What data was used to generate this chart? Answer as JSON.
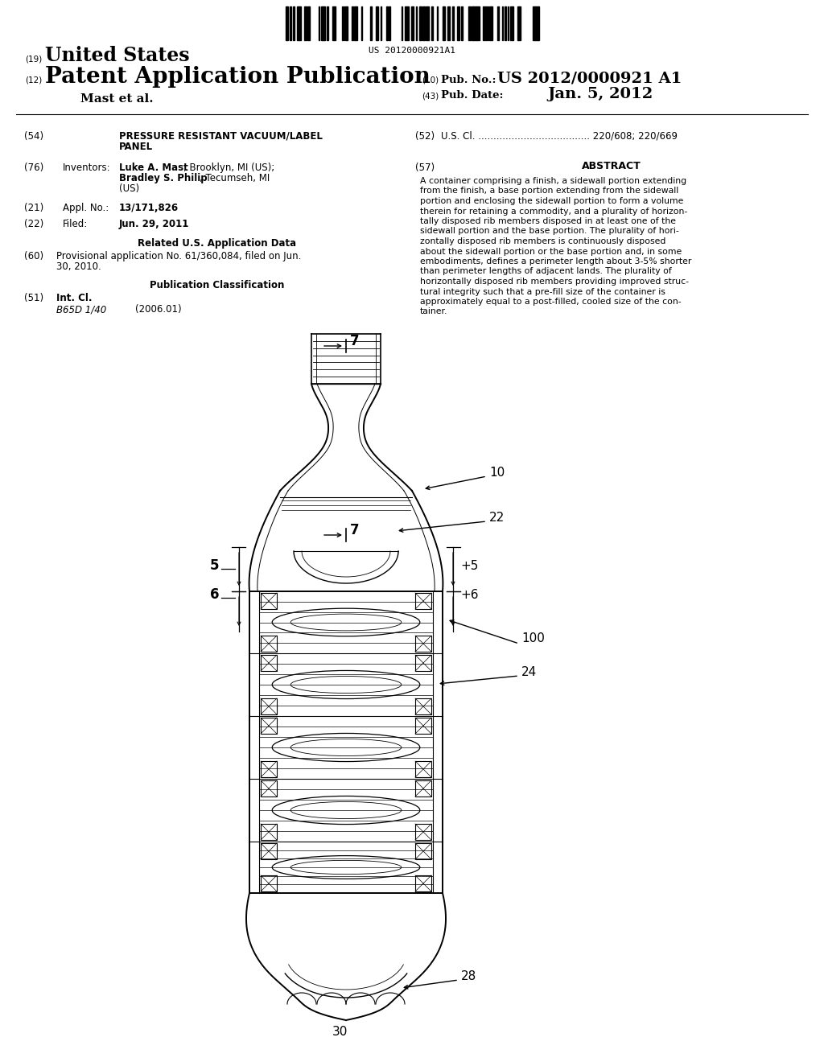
{
  "bg_color": "#ffffff",
  "barcode_text": "US 20120000921A1",
  "pub_no_value": "US 2012/0000921 A1",
  "pub_date_value": "Jan. 5, 2012",
  "abstract_text": "A container comprising a finish, a sidewall portion extending\nfrom the finish, a base portion extending from the sidewall\nportion and enclosing the sidewall portion to form a volume\ntherein for retaining a commodity, and a plurality of horizon-\ntally disposed rib members disposed in at least one of the\nsidewall portion and the base portion. The plurality of hori-\nzontally disposed rib members is continuously disposed\nabout the sidewall portion or the base portion and, in some\nembodiments, defines a perimeter length about 3-5% shorter\nthan perimeter lengths of adjacent lands. The plurality of\nhorizontally disposed rib members providing improved struc-\ntural integrity such that a pre-fill size of the container is\napproximately equal to a post-filled, cooled size of the con-\ntainer."
}
